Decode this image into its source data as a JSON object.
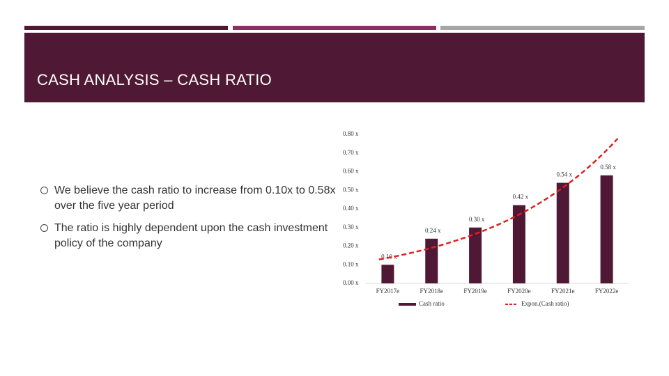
{
  "slide": {
    "title": "CASH ANALYSIS – CASH RATIO",
    "bullets": [
      "We believe the cash ratio to increase from 0.10x to 0.58x over the five year period",
      "The ratio is highly dependent upon the cash investment policy of the company"
    ]
  },
  "chart_data": {
    "type": "bar",
    "categories": [
      "FY2017e",
      "FY2018e",
      "FY2019e",
      "FY2020e",
      "FY2021e",
      "FY2022e"
    ],
    "series": [
      {
        "name": "Cash ratio",
        "color": "#4f1834",
        "values": [
          0.1,
          0.24,
          0.3,
          0.42,
          0.54,
          0.58
        ],
        "value_labels": [
          "0.10 x",
          "0.24 x",
          "0.30 x",
          "0.42 x",
          "0.54 x",
          "0.58 x"
        ]
      }
    ],
    "trendline": {
      "name": "Expon.(Cash ratio)",
      "kind": "exponential",
      "color": "#e02020"
    },
    "ylim": [
      0,
      0.8
    ],
    "yticks": [
      {
        "value": 0,
        "label": "0.00 x"
      },
      {
        "value": 0.1,
        "label": "0.10 x"
      },
      {
        "value": 0.2,
        "label": "0.20 x"
      },
      {
        "value": 0.3,
        "label": "0.30 x"
      },
      {
        "value": 0.4,
        "label": "0.40 x"
      },
      {
        "value": 0.5,
        "label": "0.50 x"
      },
      {
        "value": 0.6,
        "label": "0.60 x"
      },
      {
        "value": 0.7,
        "label": "0.70 x"
      },
      {
        "value": 0.8,
        "label": "0.80 x"
      }
    ],
    "legend": "bottom"
  }
}
